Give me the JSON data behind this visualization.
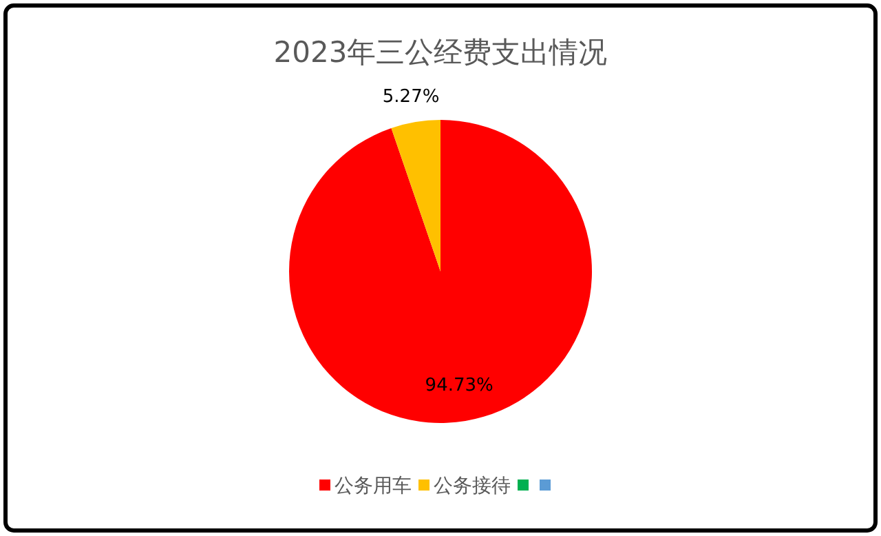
{
  "chart_data": {
    "type": "pie",
    "title": "2023年三公经费支出情况",
    "categories": [
      "公务用车",
      "公务接待",
      null,
      null
    ],
    "values": [
      94.73,
      5.27,
      0,
      0
    ],
    "colors": [
      "#ff0000",
      "#ffc000",
      "#00b050",
      "#5b9bd5"
    ],
    "value_labels": [
      "94.73%",
      "5.27%",
      null,
      null
    ],
    "legend": "bottom"
  }
}
